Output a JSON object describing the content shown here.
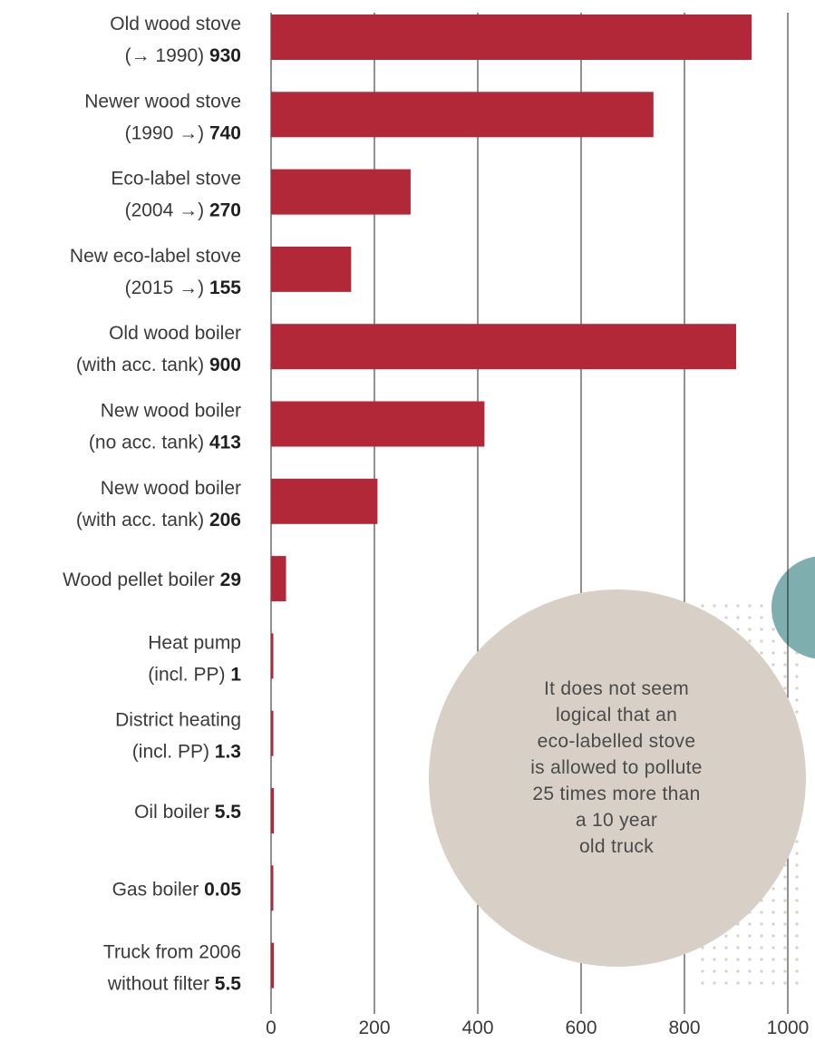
{
  "chart_data": {
    "type": "bar",
    "orientation": "horizontal",
    "categories": [
      {
        "line1": "Old wood stove",
        "line2_prefix": "(→ 1990)",
        "value_label": "930"
      },
      {
        "line1": "Newer wood stove",
        "line2_prefix": "(1990 →)",
        "value_label": "740"
      },
      {
        "line1": "Eco-label stove",
        "line2_prefix": "(2004 →)",
        "value_label": "270"
      },
      {
        "line1": "New eco-label stove",
        "line2_prefix": "(2015 →)",
        "value_label": "155"
      },
      {
        "line1": "Old wood boiler",
        "line2_prefix": "(with acc. tank)",
        "value_label": "900"
      },
      {
        "line1": "New wood boiler",
        "line2_prefix": "(no acc. tank)",
        "value_label": "413"
      },
      {
        "line1": "New wood boiler",
        "line2_prefix": "(with acc. tank)",
        "value_label": "206"
      },
      {
        "line1": "",
        "line2_prefix": "Wood pellet boiler",
        "value_label": "29"
      },
      {
        "line1": "Heat pump",
        "line2_prefix": "(incl. PP)",
        "value_label": "1"
      },
      {
        "line1": "District heating",
        "line2_prefix": "(incl. PP)",
        "value_label": "1.3"
      },
      {
        "line1": "",
        "line2_prefix": "Oil boiler",
        "value_label": "5.5"
      },
      {
        "line1": "",
        "line2_prefix": "Gas boiler",
        "value_label": "0.05"
      },
      {
        "line1": "Truck from 2006",
        "line2_prefix": "without filter",
        "value_label": "5.5"
      }
    ],
    "values": [
      930,
      740,
      270,
      155,
      900,
      413,
      206,
      29,
      1,
      1.3,
      5.5,
      0.05,
      5.5
    ],
    "xlim": [
      0,
      1000
    ],
    "xticks": [
      "0",
      "200",
      "400",
      "600",
      "800",
      "1000"
    ],
    "grid": true,
    "colors": {
      "bar": "#b32838",
      "grid": "#222222",
      "callout": "#d8d0c6",
      "accent": "#7eaeae",
      "dots": "#d6d0c8"
    }
  },
  "callout": {
    "lines": [
      "It does not seem",
      "logical that an",
      "eco-labelled stove",
      "is allowed to pollute",
      "25 times more than",
      "a 10 year",
      "old truck"
    ]
  }
}
